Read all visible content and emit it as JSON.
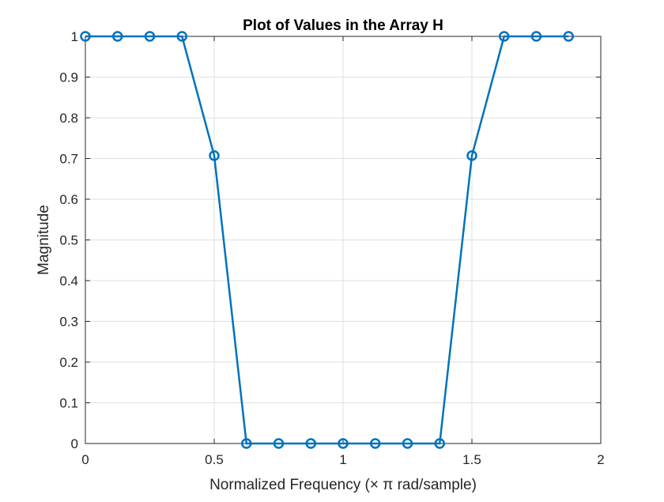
{
  "chart_data": {
    "type": "line",
    "title": "Plot of Values in the Array H",
    "xlabel": "Normalized Frequency (× π rad/sample)",
    "ylabel": "Magnitude",
    "xlim": [
      0,
      2
    ],
    "ylim": [
      0,
      1
    ],
    "xticks": [
      0,
      0.5,
      1,
      1.5,
      2
    ],
    "xtick_labels": [
      "0",
      "0.5",
      "1",
      "1.5",
      "2"
    ],
    "yticks": [
      0,
      0.1,
      0.2,
      0.3,
      0.4,
      0.5,
      0.6,
      0.7,
      0.8,
      0.9,
      1
    ],
    "ytick_labels": [
      "0",
      "0.1",
      "0.2",
      "0.3",
      "0.4",
      "0.5",
      "0.6",
      "0.7",
      "0.8",
      "0.9",
      "1"
    ],
    "grid": true,
    "marker": "circle",
    "series": [
      {
        "color": "#0072BD",
        "x": [
          0,
          0.125,
          0.25,
          0.375,
          0.5,
          0.625,
          0.75,
          0.875,
          1,
          1.125,
          1.25,
          1.375,
          1.5,
          1.625,
          1.75,
          1.875
        ],
        "y": [
          1,
          1,
          1,
          1,
          0.7071,
          0,
          0,
          0,
          0,
          0,
          0,
          0,
          0.7071,
          1,
          1,
          1
        ]
      }
    ]
  }
}
